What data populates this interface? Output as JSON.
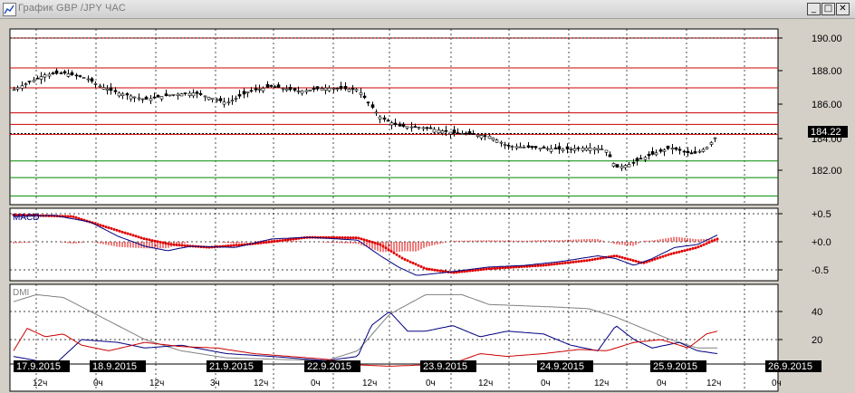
{
  "window": {
    "title": "График GBP /JPY ЧАС",
    "minimize_glyph": "_",
    "maximize_glyph": "□",
    "close_glyph": "✕"
  },
  "price_panel": {
    "current_price": "184.22",
    "y_ticks": [
      "190.00",
      "188.00",
      "186.00",
      "184.00",
      "182.00"
    ],
    "red_levels": [
      190.0,
      188.2,
      187.0,
      185.5,
      184.8,
      184.2
    ],
    "green_levels": [
      182.6,
      181.6,
      180.5
    ],
    "colors": {
      "red_level": "#cc0000",
      "green_level": "#008800",
      "candle": "#000000"
    }
  },
  "macd_panel": {
    "label": "MACD",
    "y_ticks": [
      "+0.5",
      "+0.0",
      "-0.5"
    ],
    "colors": {
      "macd": "#000080",
      "signal": "#e00000",
      "histogram": "#e00000"
    }
  },
  "dmi_panel": {
    "label": "DMI",
    "y_ticks": [
      "40",
      "20"
    ],
    "colors": {
      "adx": "#808080",
      "plus_di": "#000080",
      "minus_di": "#cc0000"
    }
  },
  "time_axis": {
    "dates": [
      "17.9.2015",
      "18.9.2015",
      "21.9.2015",
      "22.9.2015",
      "23.9.2015",
      "24.9.2015",
      "25.9.2015",
      "26.9.2015"
    ],
    "hour_labels": [
      "12ч",
      "0ч",
      "12ч",
      "3ч",
      "12ч",
      "0ч",
      "12ч",
      "0ч",
      "12ч",
      "0ч",
      "12ч",
      "0ч",
      "12ч",
      "0ч"
    ]
  }
}
